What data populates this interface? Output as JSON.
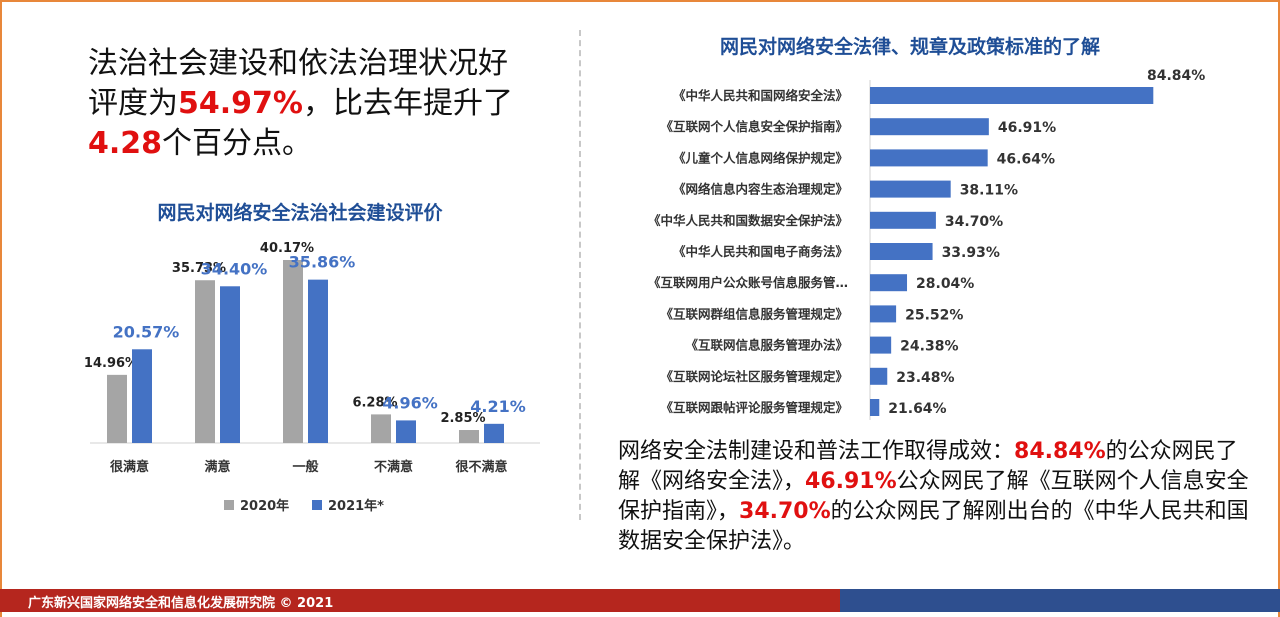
{
  "headline": {
    "part1": "法治社会建设和依法治理状况好评度为",
    "value": "54.97%",
    "part2": "，比去年提升了",
    "delta": "4.28",
    "part3": "个百分点。"
  },
  "summary": {
    "p1": "网络安全法制建设和普法工作取得成效：",
    "v1": "84.84%",
    "p2": "的公众网民了解《网络安全法》，",
    "v2": "46.91%",
    "p3": "公众网民了解《互联网个人信息安全保护指南》，",
    "v3": "34.70%",
    "p4": "的公众网民了解刚出台的《中华人民共和国数据安全保护法》。"
  },
  "footer": {
    "text": "广东新兴国家网络安全和信息化发展研究院 © 2021"
  },
  "colors": {
    "gray": "#a5a5a5",
    "blue": "#4472c4",
    "red": "#e01010",
    "title": "#1f4e96"
  },
  "chart_data": [
    {
      "type": "bar",
      "title": "网民对网络安全法治社会建设评价",
      "categories": [
        "很满意",
        "满意",
        "一般",
        "不满意",
        "很不满意"
      ],
      "series": [
        {
          "name": "2020年",
          "values": [
            14.96,
            35.73,
            40.17,
            6.28,
            2.85
          ],
          "labels": [
            "14.96%",
            "35.73%",
            "40.17%",
            "6.28%",
            "2.85%"
          ]
        },
        {
          "name": "2021年*",
          "values": [
            20.57,
            34.4,
            35.86,
            4.96,
            4.21
          ],
          "labels": [
            "20.57%",
            "34.40%",
            "35.86%",
            "4.96%",
            "4.21%"
          ]
        }
      ],
      "ylim": [
        0,
        45
      ],
      "legend": "bottom",
      "grid": false
    },
    {
      "type": "bar",
      "orientation": "horizontal",
      "title": "网民对网络安全法律、规章及政策标准的了解",
      "categories": [
        "《中华人民共和国网络安全法》",
        "《互联网个人信息安全保护指南》",
        "《儿童个人信息网络保护规定》",
        "《网络信息内容生态治理规定》",
        "《中华人民共和国数据安全保护法》",
        "《中华人民共和国电子商务法》",
        "《互联网用户公众账号信息服务管…",
        "《互联网群组信息服务管理规定》",
        "《互联网信息服务管理办法》",
        "《互联网论坛社区服务管理规定》",
        "《互联网跟帖评论服务管理规定》"
      ],
      "values": [
        84.84,
        46.91,
        46.64,
        38.11,
        34.7,
        33.93,
        28.04,
        25.52,
        24.38,
        23.48,
        21.64
      ],
      "labels": [
        "84.84%",
        "46.91%",
        "46.64%",
        "38.11%",
        "34.70%",
        "33.93%",
        "28.04%",
        "25.52%",
        "24.38%",
        "23.48%",
        "21.64%"
      ],
      "xlim": [
        19.5,
        85
      ],
      "grid": false
    }
  ]
}
